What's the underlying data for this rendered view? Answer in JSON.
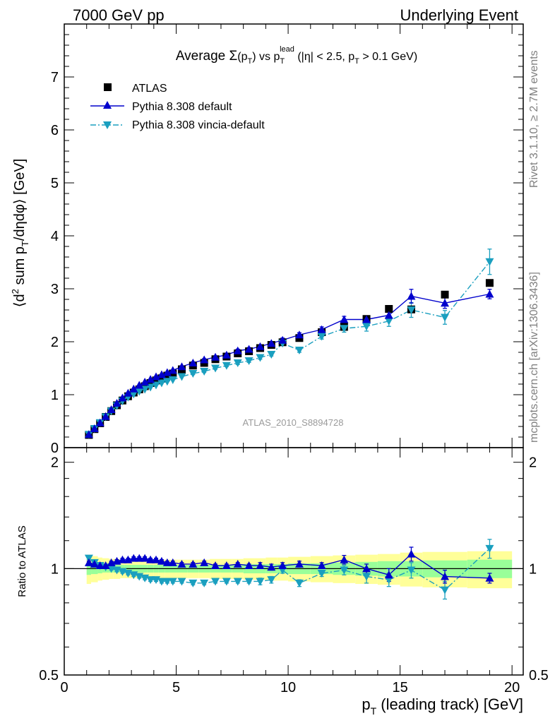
{
  "header": {
    "left": "7000 GeV pp",
    "right": "Underlying Event"
  },
  "side_labels": {
    "rivet": "Rivet 3.1.10, ≥ 2.7M events",
    "mcplots": "mcplots.cern.ch [arXiv:1306.3436]"
  },
  "chart_data": [
    {
      "type": "scatter",
      "panel": "main",
      "title": "Average Σ(pT) vs pT^lead (|η| < 2.5, pT > 0.1 GeV)",
      "title_parts": {
        "prefix": "Average ",
        "sigma": "Σ",
        "pt_open": "(p",
        "pt_sub": "T",
        "pt_close": ")",
        "vs": " vs p",
        "lead_sub": "T",
        "lead_sup": "lead",
        "cut_a": " (|η| < 2.5, p",
        "cut_sub": "T",
        "cut_b": " > 0.1 GeV)"
      },
      "ylabel": "⟨d² sum pT/dηdφ⟩ [GeV]",
      "ylabel_parts": {
        "a": "⟨d",
        "sup": "2",
        "b": " sum p",
        "sub": "T",
        "c": "/dηdφ⟩ [GeV]"
      },
      "xlim": [
        0,
        20.5
      ],
      "ylim": [
        0,
        8
      ],
      "yticks": [
        0,
        1,
        2,
        3,
        4,
        5,
        6,
        7
      ],
      "watermark": "ATLAS_2010_S8894728",
      "legend_position": "top-left",
      "series": [
        {
          "name": "ATLAS",
          "marker": "square",
          "color": "#000000",
          "x": [
            1.1,
            1.35,
            1.6,
            1.85,
            2.1,
            2.35,
            2.6,
            2.85,
            3.1,
            3.35,
            3.6,
            3.85,
            4.1,
            4.35,
            4.6,
            4.85,
            5.25,
            5.75,
            6.25,
            6.75,
            7.25,
            7.75,
            8.25,
            8.75,
            9.25,
            9.75,
            10.5,
            11.5,
            12.5,
            13.5,
            14.5,
            15.5,
            17.0,
            19.0
          ],
          "y": [
            0.24,
            0.35,
            0.46,
            0.58,
            0.69,
            0.8,
            0.89,
            0.97,
            1.04,
            1.1,
            1.16,
            1.22,
            1.27,
            1.31,
            1.36,
            1.4,
            1.48,
            1.55,
            1.6,
            1.67,
            1.72,
            1.78,
            1.82,
            1.88,
            1.94,
            1.99,
            2.07,
            2.18,
            2.28,
            2.43,
            2.62,
            2.61,
            2.89,
            3.11
          ]
        },
        {
          "name": "Pythia 8.308 default",
          "marker": "triangle-up",
          "line": "solid",
          "color": "#0000cc",
          "x": [
            1.1,
            1.35,
            1.6,
            1.85,
            2.1,
            2.35,
            2.6,
            2.85,
            3.1,
            3.35,
            3.6,
            3.85,
            4.1,
            4.35,
            4.6,
            4.85,
            5.25,
            5.75,
            6.25,
            6.75,
            7.25,
            7.75,
            8.25,
            8.75,
            9.25,
            9.75,
            10.5,
            11.5,
            12.5,
            13.5,
            14.5,
            15.5,
            17.0,
            19.0
          ],
          "y": [
            0.25,
            0.36,
            0.47,
            0.59,
            0.72,
            0.84,
            0.94,
            1.03,
            1.11,
            1.18,
            1.24,
            1.29,
            1.34,
            1.38,
            1.42,
            1.46,
            1.53,
            1.6,
            1.66,
            1.71,
            1.75,
            1.83,
            1.86,
            1.91,
            1.97,
            2.03,
            2.13,
            2.23,
            2.42,
            2.42,
            2.5,
            2.86,
            2.73,
            2.9
          ],
          "yerr": [
            0.01,
            0.01,
            0.01,
            0.01,
            0.01,
            0.01,
            0.01,
            0.01,
            0.01,
            0.01,
            0.01,
            0.01,
            0.01,
            0.01,
            0.01,
            0.01,
            0.01,
            0.02,
            0.02,
            0.02,
            0.02,
            0.03,
            0.03,
            0.03,
            0.03,
            0.04,
            0.04,
            0.05,
            0.06,
            0.07,
            0.09,
            0.13,
            0.1,
            0.09
          ]
        },
        {
          "name": "Pythia 8.308 vincia-default",
          "marker": "triangle-down",
          "line": "dashdot",
          "color": "#1a9fbf",
          "x": [
            1.1,
            1.35,
            1.6,
            1.85,
            2.1,
            2.35,
            2.6,
            2.85,
            3.1,
            3.35,
            3.6,
            3.85,
            4.1,
            4.35,
            4.6,
            4.85,
            5.25,
            5.75,
            6.25,
            6.75,
            7.25,
            7.75,
            8.25,
            8.75,
            9.25,
            9.75,
            10.5,
            11.5,
            12.5,
            13.5,
            14.5,
            15.5,
            17.0,
            19.0
          ],
          "y": [
            0.25,
            0.36,
            0.47,
            0.58,
            0.69,
            0.79,
            0.88,
            0.95,
            1.01,
            1.06,
            1.1,
            1.14,
            1.18,
            1.22,
            1.25,
            1.28,
            1.34,
            1.4,
            1.44,
            1.5,
            1.55,
            1.6,
            1.64,
            1.7,
            1.76,
            1.97,
            1.84,
            2.1,
            2.25,
            2.29,
            2.39,
            2.6,
            2.46,
            3.51
          ],
          "yerr": [
            0.01,
            0.01,
            0.01,
            0.01,
            0.01,
            0.01,
            0.01,
            0.01,
            0.01,
            0.01,
            0.01,
            0.01,
            0.01,
            0.01,
            0.01,
            0.01,
            0.01,
            0.02,
            0.02,
            0.02,
            0.02,
            0.03,
            0.03,
            0.03,
            0.03,
            0.04,
            0.04,
            0.05,
            0.07,
            0.09,
            0.1,
            0.14,
            0.13,
            0.24
          ]
        }
      ]
    },
    {
      "type": "scatter",
      "panel": "ratio",
      "xlabel": "pT (leading track) [GeV]",
      "xlabel_parts": {
        "a": "p",
        "sub": "T",
        "b": " (leading track) [GeV]"
      },
      "ylabel": "Ratio to ATLAS",
      "xlim": [
        0,
        20.5
      ],
      "ylim": [
        0.5,
        2.2
      ],
      "xticks": [
        0,
        5,
        10,
        15,
        20
      ],
      "yticks": [
        0.5,
        1,
        2
      ],
      "reference_line": 1,
      "uncertainty_bands": {
        "yellow_color": "#ffff99",
        "green_color": "#99ff99",
        "edges": [
          1.0,
          1.2,
          1.5,
          1.7,
          2.0,
          2.2,
          2.5,
          2.7,
          3.0,
          3.2,
          3.5,
          3.7,
          4.0,
          4.2,
          4.5,
          4.7,
          5.0,
          5.5,
          6.0,
          6.5,
          7.0,
          7.5,
          8.0,
          8.5,
          9.0,
          9.5,
          10.0,
          11.0,
          12.0,
          13.0,
          14.0,
          15.0,
          16.0,
          18.0,
          20.0
        ],
        "yellow_half": [
          0.095,
          0.085,
          0.075,
          0.07,
          0.065,
          0.065,
          0.06,
          0.06,
          0.06,
          0.06,
          0.06,
          0.06,
          0.06,
          0.06,
          0.06,
          0.06,
          0.06,
          0.06,
          0.06,
          0.065,
          0.065,
          0.065,
          0.07,
          0.07,
          0.075,
          0.075,
          0.08,
          0.085,
          0.09,
          0.095,
          0.1,
          0.11,
          0.115,
          0.12
        ],
        "green_half": [
          0.04,
          0.035,
          0.03,
          0.025,
          0.025,
          0.025,
          0.025,
          0.025,
          0.025,
          0.025,
          0.025,
          0.025,
          0.025,
          0.025,
          0.025,
          0.025,
          0.025,
          0.025,
          0.025,
          0.025,
          0.025,
          0.025,
          0.03,
          0.03,
          0.03,
          0.03,
          0.035,
          0.035,
          0.04,
          0.045,
          0.05,
          0.05,
          0.055,
          0.06
        ]
      },
      "series": [
        {
          "name": "Pythia 8.308 default",
          "marker": "triangle-up",
          "color": "#0000cc",
          "x": [
            1.1,
            1.35,
            1.6,
            1.85,
            2.1,
            2.35,
            2.6,
            2.85,
            3.1,
            3.35,
            3.6,
            3.85,
            4.1,
            4.35,
            4.6,
            4.85,
            5.25,
            5.75,
            6.25,
            6.75,
            7.25,
            7.75,
            8.25,
            8.75,
            9.25,
            9.75,
            10.5,
            11.5,
            12.5,
            13.5,
            14.5,
            15.5,
            17.0,
            19.0
          ],
          "y": [
            1.04,
            1.03,
            1.02,
            1.02,
            1.04,
            1.05,
            1.06,
            1.06,
            1.07,
            1.07,
            1.07,
            1.06,
            1.06,
            1.05,
            1.04,
            1.04,
            1.03,
            1.03,
            1.04,
            1.02,
            1.02,
            1.03,
            1.02,
            1.02,
            1.01,
            1.02,
            1.03,
            1.02,
            1.06,
            1.0,
            0.96,
            1.1,
            0.95,
            0.94
          ],
          "yerr": [
            0.01,
            0.01,
            0.01,
            0.01,
            0.01,
            0.01,
            0.01,
            0.01,
            0.01,
            0.01,
            0.01,
            0.01,
            0.01,
            0.01,
            0.01,
            0.01,
            0.01,
            0.01,
            0.01,
            0.01,
            0.01,
            0.01,
            0.01,
            0.02,
            0.02,
            0.02,
            0.02,
            0.02,
            0.03,
            0.03,
            0.04,
            0.05,
            0.04,
            0.03
          ]
        },
        {
          "name": "Pythia 8.308 vincia-default",
          "marker": "triangle-down",
          "color": "#1a9fbf",
          "x": [
            1.1,
            1.35,
            1.6,
            1.85,
            2.1,
            2.35,
            2.6,
            2.85,
            3.1,
            3.35,
            3.6,
            3.85,
            4.1,
            4.35,
            4.6,
            4.85,
            5.25,
            5.75,
            6.25,
            6.75,
            7.25,
            7.75,
            8.25,
            8.75,
            9.25,
            9.75,
            10.5,
            11.5,
            12.5,
            13.5,
            14.5,
            15.5,
            17.0,
            19.0
          ],
          "y": [
            1.07,
            1.04,
            1.02,
            1.01,
            1.0,
            0.99,
            0.98,
            0.97,
            0.96,
            0.95,
            0.94,
            0.93,
            0.93,
            0.92,
            0.92,
            0.92,
            0.92,
            0.91,
            0.91,
            0.92,
            0.92,
            0.92,
            0.92,
            0.92,
            0.93,
            0.99,
            0.91,
            0.97,
            0.99,
            0.95,
            0.93,
            0.99,
            0.87,
            1.14
          ],
          "yerr": [
            0.01,
            0.01,
            0.01,
            0.01,
            0.01,
            0.01,
            0.01,
            0.01,
            0.01,
            0.01,
            0.01,
            0.01,
            0.01,
            0.01,
            0.01,
            0.01,
            0.01,
            0.01,
            0.01,
            0.01,
            0.01,
            0.01,
            0.01,
            0.02,
            0.02,
            0.02,
            0.02,
            0.02,
            0.03,
            0.04,
            0.04,
            0.05,
            0.05,
            0.07
          ]
        }
      ]
    }
  ]
}
